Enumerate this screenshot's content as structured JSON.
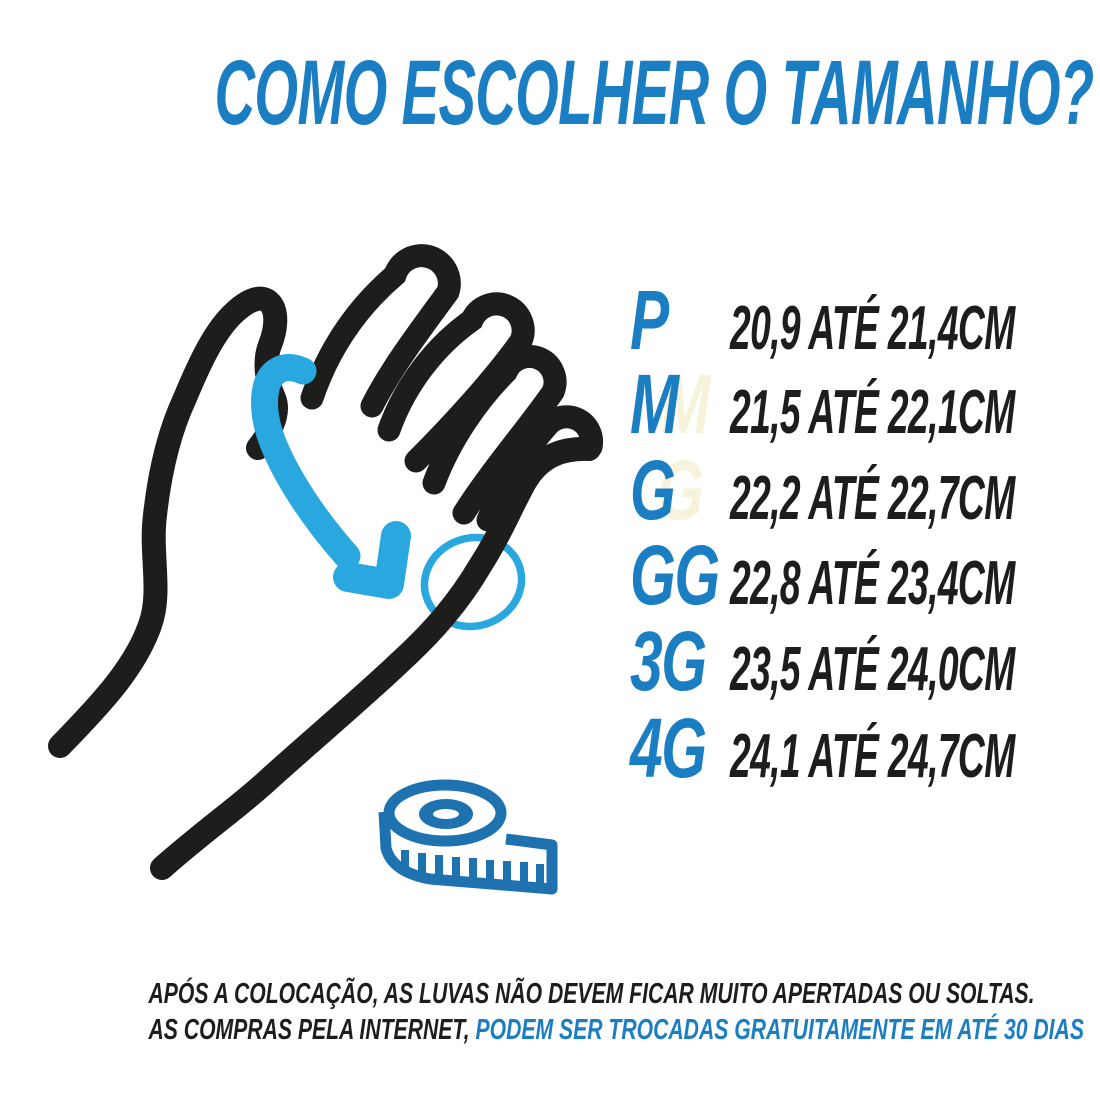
{
  "title": "COMO ESCOLHER O TAMANHO?",
  "size_table": {
    "rows": [
      {
        "size": "P",
        "ghost": "",
        "range": "20,9 ATÉ 21,4CM"
      },
      {
        "size": "M",
        "ghost": "M",
        "range": "21,5 ATÉ 22,1CM"
      },
      {
        "size": "G",
        "ghost": "G",
        "range": "22,2 ATÉ 22,7CM"
      },
      {
        "size": "GG",
        "ghost": "",
        "range": "22,8 ATÉ 23,4CM"
      },
      {
        "size": "3G",
        "ghost": "",
        "range": "23,5 ATÉ 24,0CM"
      },
      {
        "size": "4G",
        "ghost": "",
        "range": "24,1 ATÉ 24,7CM"
      }
    ]
  },
  "footer": {
    "line1": "APÓS A COLOCAÇÃO, AS LUVAS NÃO DEVEM FICAR MUITO APERTADAS OU SOLTAS.",
    "line2_black": "AS COMPRAS PELA INTERNET,",
    "line2_blue": "PODEM SER TROCADAS GRATUITAMENTE EM ATÉ 30 DIAS"
  },
  "icons": {
    "hand": "hand-measure-illustration",
    "arrow": "measure-around-palm-arrow",
    "wrist_loop": "wrist-measure-ellipse",
    "tape": "measuring-tape-icon"
  },
  "colors": {
    "accent_blue": "#1b7ec2",
    "arrow_blue": "#29a8e0",
    "tape_blue": "#1e72b0",
    "ghost_cream": "#f7f3da",
    "text_black": "#1d1d1b"
  }
}
